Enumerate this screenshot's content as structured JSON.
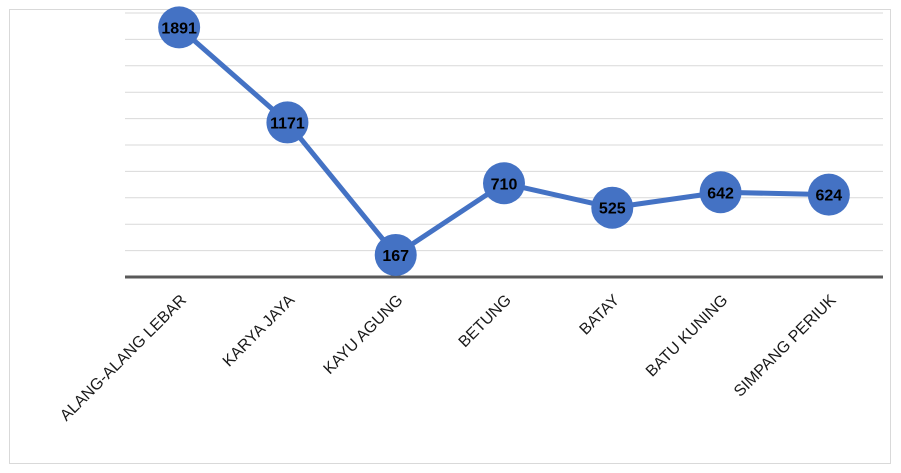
{
  "chart_data": {
    "type": "line",
    "categories": [
      "ALANG-ALANG LEBAR",
      "KARYA JAYA",
      "KAYU AGUNG",
      "BETUNG",
      "BATAY",
      "BATU KUNING",
      "SIMPANG PERIUK"
    ],
    "values": [
      1891,
      1171,
      167,
      710,
      525,
      642,
      624
    ],
    "title": "",
    "xlabel": "",
    "ylabel": "",
    "ylim": [
      0,
      2000
    ],
    "grid": true,
    "legend": "none",
    "colors": {
      "line": "#4472c4",
      "marker": "#4472c4",
      "grid": "#d9d9d9",
      "axis": "#595959"
    }
  }
}
